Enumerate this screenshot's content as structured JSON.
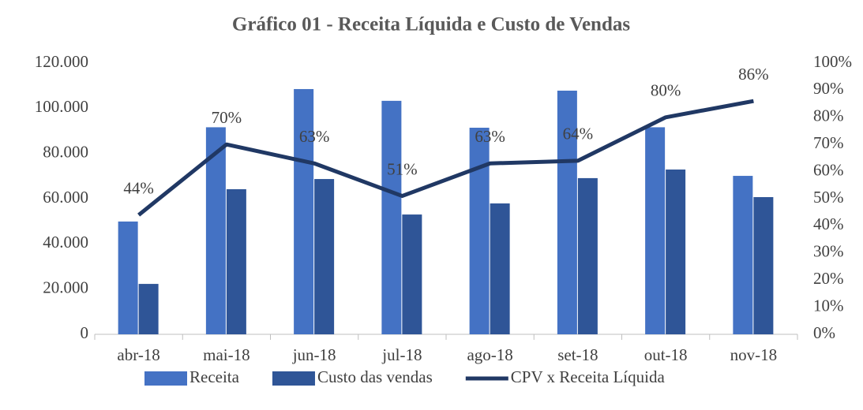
{
  "chart_data": {
    "type": "bar_line",
    "title": "Gráfico 01 - Receita Líquida e Custo de Vendas",
    "categories": [
      "abr-18",
      "mai-18",
      "jun-18",
      "jul-18",
      "ago-18",
      "set-18",
      "out-18",
      "nov-18"
    ],
    "series": [
      {
        "name": "Receita",
        "type": "bar",
        "color": "#4472c4",
        "values": [
          49900,
          91600,
          108500,
          103300,
          91400,
          107800,
          91600,
          70100
        ]
      },
      {
        "name": "Custo das vendas",
        "type": "bar",
        "color": "#2f5597",
        "values": [
          22300,
          64200,
          68700,
          53000,
          57900,
          69100,
          72900,
          60700
        ]
      },
      {
        "name": "CPV x Receita Líquida",
        "type": "line",
        "axis": "y2",
        "color": "#203864",
        "values": [
          44,
          70,
          63,
          51,
          63,
          64,
          80,
          86
        ],
        "value_labels": [
          "44%",
          "70%",
          "63%",
          "51%",
          "63%",
          "64%",
          "80%",
          "86%"
        ]
      }
    ],
    "ylim": [
      0,
      120000
    ],
    "yticks": [
      0,
      {
        "value": 20000,
        "label": "20.000"
      },
      {
        "value": 40000,
        "label": "40.000"
      },
      {
        "value": 60000,
        "label": "60.000"
      },
      {
        "value": 80000,
        "label": "80.000"
      },
      {
        "value": 100000,
        "label": "100.000"
      },
      {
        "value": 120000,
        "label": "120.000"
      }
    ],
    "y2lim": [
      0,
      100
    ],
    "y2ticks": [
      {
        "value": 0,
        "label": "0%"
      },
      {
        "value": 10,
        "label": "10%"
      },
      {
        "value": 20,
        "label": "20%"
      },
      {
        "value": 30,
        "label": "30%"
      },
      {
        "value": 40,
        "label": "40%"
      },
      {
        "value": 50,
        "label": "50%"
      },
      {
        "value": 60,
        "label": "60%"
      },
      {
        "value": 70,
        "label": "70%"
      },
      {
        "value": 80,
        "label": "80%"
      },
      {
        "value": 90,
        "label": "90%"
      },
      {
        "value": 100,
        "label": "100%"
      }
    ],
    "grid": false,
    "legend": "bottom"
  }
}
